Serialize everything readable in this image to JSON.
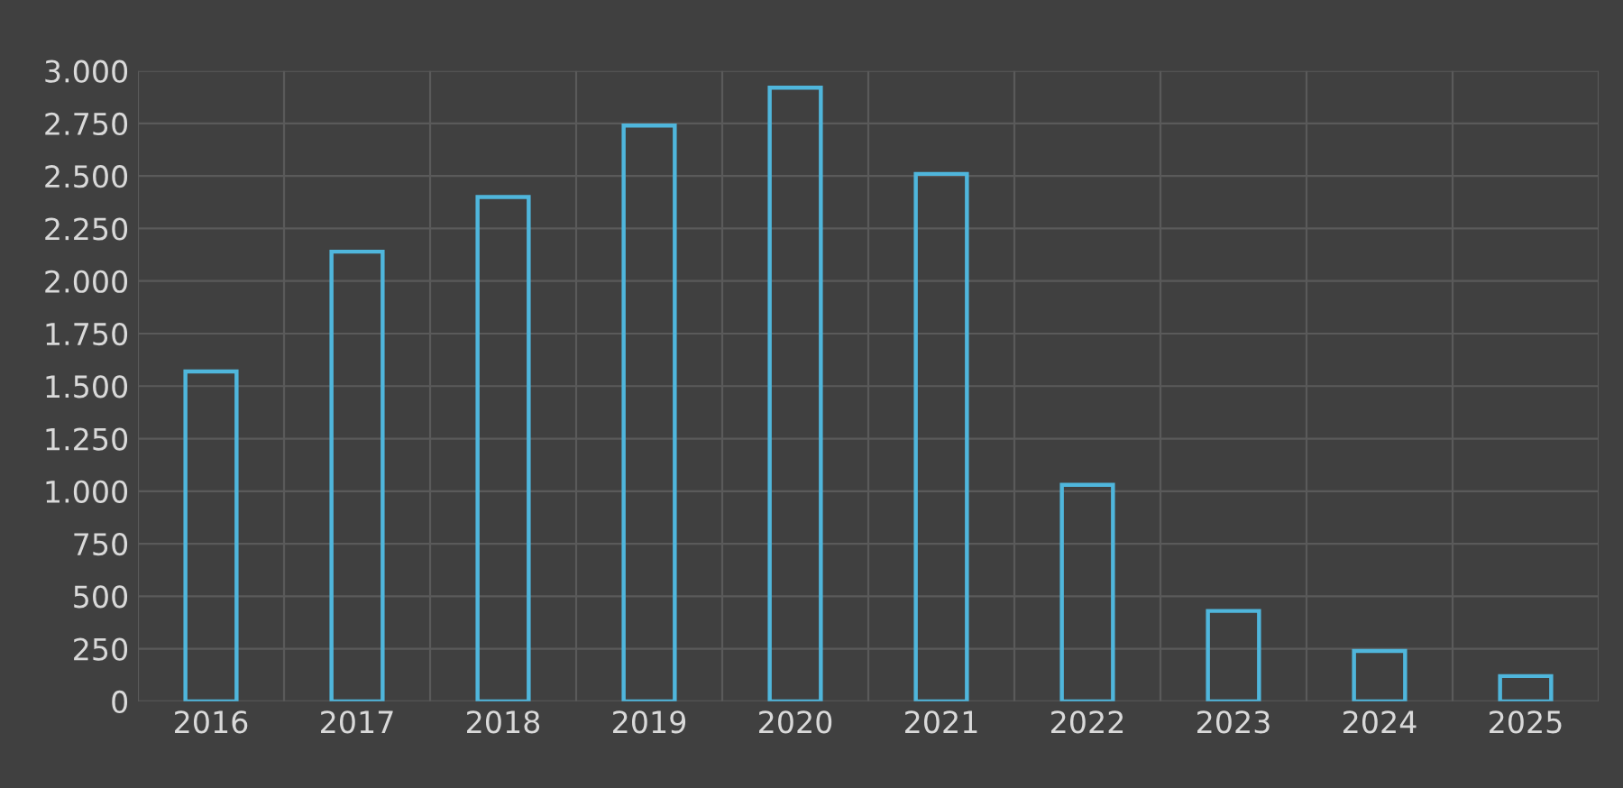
{
  "chart_data": {
    "type": "bar",
    "categories": [
      "2016",
      "2017",
      "2018",
      "2019",
      "2020",
      "2021",
      "2022",
      "2023",
      "2024",
      "2025"
    ],
    "values": [
      1570,
      2140,
      2400,
      2740,
      2920,
      2510,
      1030,
      430,
      240,
      120
    ],
    "color": "#4fb6dc",
    "ylim": [
      0,
      3000
    ],
    "yticks": [
      0,
      250,
      500,
      750,
      {
        "value": 1000,
        "label": "1.000"
      },
      {
        "value": 1250,
        "label": "1.250"
      },
      {
        "value": 1500,
        "label": "1.500"
      },
      {
        "value": 1750,
        "label": "1.750"
      },
      {
        "value": 2000,
        "label": "2.000"
      },
      {
        "value": 2250,
        "label": "2.250"
      },
      {
        "value": 2500,
        "label": "2.500"
      },
      {
        "value": 2750,
        "label": "2.750"
      },
      {
        "value": 3000,
        "label": "3.000"
      }
    ],
    "grid": true
  }
}
